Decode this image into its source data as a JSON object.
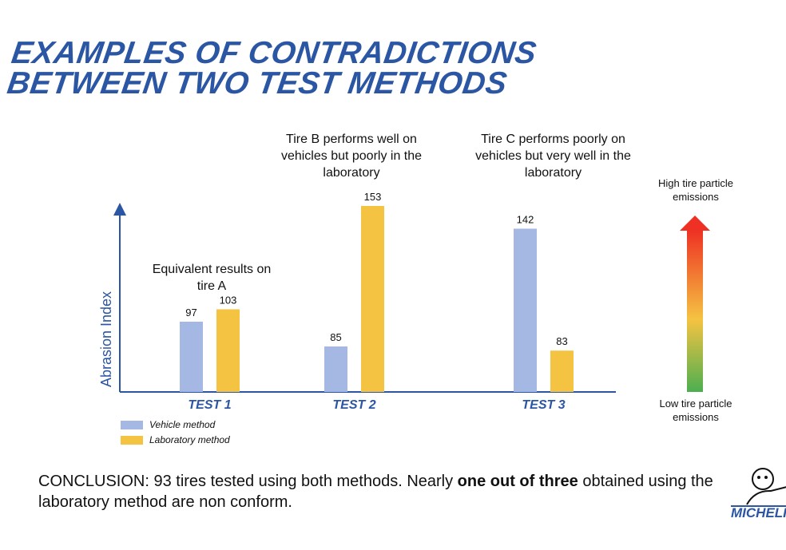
{
  "title": [
    "EXAMPLES OF CONTRADICTIONS",
    "BETWEEN TWO TEST METHODS"
  ],
  "chart_data": {
    "type": "bar",
    "categories": [
      "TEST 1",
      "TEST 2",
      "TEST 3"
    ],
    "series": [
      {
        "name": "Vehicle method",
        "values": [
          97,
          85,
          142
        ],
        "color": "#a5b7e3"
      },
      {
        "name": "Laboratory method",
        "values": [
          103,
          153,
          83
        ],
        "color": "#f5c342"
      }
    ],
    "ylabel": "Abrasion Index",
    "ylim": [
      63,
      156
    ],
    "legend": "bottom-left",
    "annotations": [
      "Equivalent results on tire A",
      "Tire B performs well on vehicles but poorly in the laboratory",
      "Tire C performs poorly on vehicles but very well in the laboratory"
    ]
  },
  "scale": {
    "high": "High tire particle emissions",
    "low": "Low tire particle emissions"
  },
  "conclusion": {
    "pre": "CONCLUSION: 93 tires tested using both methods. Nearly ",
    "bold": "one out of three",
    "post": " obtained using the laboratory method are non conform."
  },
  "logo": "MICHELIN"
}
